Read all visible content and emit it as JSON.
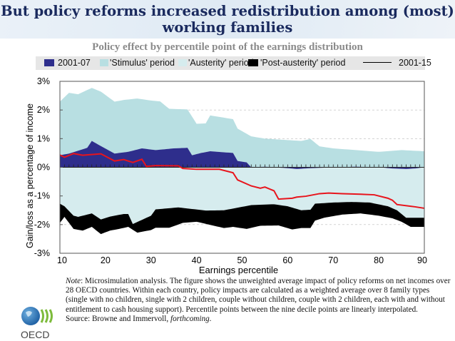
{
  "title": "But policy reforms increased redistribution among (most) working families",
  "chart_data": {
    "type": "area",
    "title": "Policy effect by percentile point of the earnings distribution",
    "xlabel": "Earnings percentile",
    "ylabel": "Gain/loss as a percentage of income",
    "xlim": [
      10,
      90
    ],
    "ylim": [
      -3,
      3
    ],
    "xticks": [
      "10",
      "20",
      "30",
      "40",
      "50",
      "60",
      "70",
      "80",
      "90"
    ],
    "yticks": [
      "3%",
      "2%",
      "1%",
      "0%",
      "-1%",
      "-2%",
      "-3%"
    ],
    "grid": true,
    "legend": "top",
    "legend_labels": [
      "2001-07",
      "'Stimulus' period",
      "'Austerity' period",
      "'Post-austerity' period",
      "2001-15"
    ],
    "colors": {
      "2001-07": "#2e2e8c",
      "stimulus": "#b8dfe2",
      "austerity": "#d6ecee",
      "post_austerity": "#000000",
      "line_2001_15": "#e8141c"
    },
    "series": [
      {
        "name": "'Stimulus' period",
        "kind": "band",
        "note_upper_bound_cumulative": true,
        "x": [
          10,
          12,
          14,
          17,
          19,
          22,
          24,
          27,
          30,
          32,
          34,
          38,
          40,
          42,
          43,
          48,
          49,
          52,
          55,
          60,
          63,
          65,
          67,
          70,
          75,
          80,
          85,
          90
        ],
        "upper": [
          2.29,
          2.6,
          2.55,
          2.77,
          2.64,
          2.29,
          2.35,
          2.4,
          2.33,
          2.3,
          2.04,
          2.02,
          1.52,
          1.53,
          1.81,
          1.68,
          1.35,
          1.08,
          1.0,
          0.95,
          0.92,
          0.99,
          0.73,
          0.66,
          0.6,
          0.54,
          0.6,
          0.56
        ]
      },
      {
        "name": "2001-07",
        "kind": "band",
        "x": [
          10,
          12,
          14,
          16,
          17,
          19,
          22,
          25,
          28,
          31,
          35,
          38,
          39,
          41,
          43,
          48,
          49,
          51,
          52,
          55,
          60,
          62,
          65,
          70,
          75,
          80,
          83,
          86,
          88,
          90
        ],
        "upper": [
          0.42,
          0.48,
          0.58,
          0.68,
          0.92,
          0.74,
          0.48,
          0.54,
          0.66,
          0.6,
          0.66,
          0.68,
          0.42,
          0.5,
          0.56,
          0.5,
          0.22,
          0.17,
          0,
          0.02,
          -0.03,
          -0.06,
          -0.03,
          0,
          0.02,
          0,
          -0.04,
          -0.06,
          -0.04,
          0
        ]
      },
      {
        "name": "'Austerity' period",
        "kind": "band",
        "x": [
          10,
          11,
          13,
          14,
          17,
          19,
          21,
          24,
          25,
          26,
          30,
          31,
          36,
          42,
          46,
          52,
          57,
          60,
          63,
          65,
          66,
          70,
          74,
          78,
          82,
          84,
          86,
          88,
          90
        ],
        "lower": [
          -1.27,
          -1.36,
          -1.69,
          -1.73,
          -1.61,
          -1.82,
          -1.72,
          -1.63,
          -1.63,
          -1.98,
          -1.69,
          -1.47,
          -1.4,
          -1.51,
          -1.5,
          -1.32,
          -1.29,
          -1.36,
          -1.5,
          -1.48,
          -1.27,
          -1.23,
          -1.21,
          -1.23,
          -1.36,
          -1.5,
          -1.76,
          -1.76,
          -1.76
        ]
      },
      {
        "name": "'Post-austerity' period",
        "kind": "band",
        "x": [
          10,
          11,
          13,
          15,
          17,
          19,
          21,
          23,
          25,
          27,
          30,
          31,
          34,
          37,
          40,
          46,
          48,
          51,
          54,
          58,
          61,
          63,
          65,
          66,
          68,
          72,
          76,
          80,
          83,
          85,
          87,
          90
        ],
        "lower": [
          -1.94,
          -1.73,
          -2.15,
          -2.21,
          -2.08,
          -2.33,
          -2.21,
          -2.15,
          -2.08,
          -2.28,
          -2.19,
          -2.11,
          -2.11,
          -1.94,
          -1.9,
          -2.12,
          -2.08,
          -2.15,
          -2.04,
          -2.03,
          -2.17,
          -2.12,
          -2.12,
          -1.86,
          -1.76,
          -1.65,
          -1.61,
          -1.69,
          -1.78,
          -1.9,
          -2.08,
          -2.08
        ]
      },
      {
        "name": "2001-15",
        "kind": "line",
        "x": [
          10,
          11,
          13,
          15,
          19,
          22,
          24,
          26,
          28,
          29,
          31,
          36,
          37,
          40,
          45,
          48,
          49,
          52,
          54,
          55,
          57,
          58,
          61,
          62,
          64,
          67,
          69,
          72,
          76,
          79,
          82,
          83,
          84,
          87,
          88,
          90
        ],
        "y": [
          0.43,
          0.35,
          0.48,
          0.42,
          0.47,
          0.22,
          0.27,
          0.17,
          0.28,
          0.03,
          0.06,
          0.05,
          -0.04,
          -0.07,
          -0.07,
          -0.19,
          -0.44,
          -0.65,
          -0.73,
          -0.69,
          -0.82,
          -1.11,
          -1.08,
          -1.04,
          -1.01,
          -0.92,
          -0.9,
          -0.92,
          -0.94,
          -0.96,
          -1.08,
          -1.15,
          -1.3,
          -1.36,
          -1.38,
          -1.43
        ]
      }
    ]
  },
  "note": {
    "label": "Note",
    "text": ": Microsimulation analysis. The figure shows the unweighted average impact of policy reforms on net incomes over 28 OECD countries. Within each country, policy impacts are calculated as a weighted average over 8 family types (single with no children, single with 2 children, couple without children, couple with 2 children, each with and without entitlement to cash housing support). Percentile points between the nine decile points are linearly interpolated.",
    "source_prefix": "Source: Browne and Immervoll, ",
    "source_italic": "forthcoming",
    "source_suffix": "."
  },
  "logo_text": "OECD"
}
